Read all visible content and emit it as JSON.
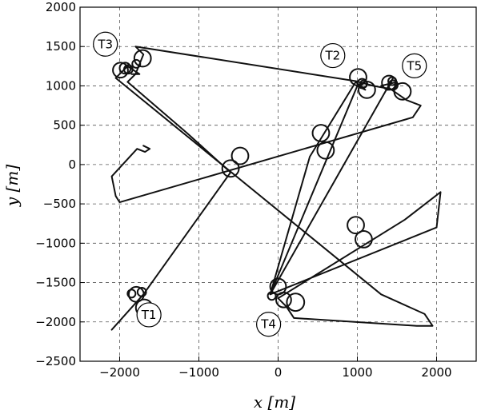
{
  "chart_data": {
    "type": "line",
    "title": "",
    "xlabel": "x [m]",
    "ylabel": "y [m]",
    "xlim": [
      -2500,
      2500
    ],
    "ylim": [
      -2500,
      2000
    ],
    "x_ticks": [
      -2000,
      -1000,
      0,
      1000,
      2000
    ],
    "y_ticks": [
      2000,
      1500,
      1000,
      500,
      0,
      -500,
      -1000,
      -1500,
      -2000,
      -2500
    ],
    "x_tick_labels": [
      "−2000",
      "−1000",
      "0",
      "1000",
      "2000"
    ],
    "y_tick_labels": [
      "2000",
      "1500",
      "1000",
      "500",
      "0",
      "−500",
      "−1000",
      "−1500",
      "−2000",
      "−2500"
    ],
    "grid": true,
    "grid_style": "dashed",
    "line_color": "#111111",
    "targets": [
      {
        "label": "T1",
        "x": -1630,
        "y": -1910
      },
      {
        "label": "T2",
        "x": 690,
        "y": 1385
      },
      {
        "label": "T3",
        "x": -2180,
        "y": 1530
      },
      {
        "label": "T4",
        "x": -120,
        "y": -2030
      },
      {
        "label": "T5",
        "x": 1720,
        "y": 1255
      }
    ],
    "loops": [
      {
        "x": -1710,
        "y": 1350,
        "r": 105
      },
      {
        "x": -1990,
        "y": 1200,
        "r": 95
      },
      {
        "x": -1930,
        "y": 1225,
        "r": 70
      },
      {
        "x": -1890,
        "y": 1210,
        "r": 55
      },
      {
        "x": -1790,
        "y": 1280,
        "r": 50
      },
      {
        "x": 1010,
        "y": 1110,
        "r": 105
      },
      {
        "x": 1120,
        "y": 950,
        "r": 105
      },
      {
        "x": 1060,
        "y": 1030,
        "r": 60
      },
      {
        "x": 1080,
        "y": 1025,
        "r": 45
      },
      {
        "x": 1400,
        "y": 1040,
        "r": 90
      },
      {
        "x": 1450,
        "y": 1010,
        "r": 60
      },
      {
        "x": 1440,
        "y": 1060,
        "r": 50
      },
      {
        "x": 1570,
        "y": 930,
        "r": 105
      },
      {
        "x": -1790,
        "y": -1650,
        "r": 95
      },
      {
        "x": -1690,
        "y": -1820,
        "r": 105
      },
      {
        "x": -1720,
        "y": -1620,
        "r": 55
      },
      {
        "x": -1850,
        "y": -1640,
        "r": 50
      },
      {
        "x": 0,
        "y": -1550,
        "r": 100
      },
      {
        "x": 70,
        "y": -1720,
        "r": 95
      },
      {
        "x": -80,
        "y": -1670,
        "r": 50
      },
      {
        "x": 220,
        "y": -1750,
        "r": 110
      },
      {
        "x": -600,
        "y": -50,
        "r": 105
      },
      {
        "x": -480,
        "y": 110,
        "r": 105
      },
      {
        "x": 540,
        "y": 400,
        "r": 105
      },
      {
        "x": 600,
        "y": 180,
        "r": 105
      },
      {
        "x": 980,
        "y": -770,
        "r": 105
      },
      {
        "x": 1080,
        "y": -950,
        "r": 105
      }
    ],
    "series": [
      {
        "points": [
          [
            -1700,
            240
          ],
          [
            -1620,
            200
          ],
          [
            -1680,
            160
          ],
          [
            -1780,
            200
          ],
          [
            -2100,
            -150
          ],
          [
            -2050,
            -400
          ],
          [
            -2000,
            -480
          ],
          [
            1700,
            600
          ],
          [
            1800,
            750
          ],
          [
            1620,
            820
          ],
          [
            1420,
            960
          ],
          [
            1200,
            1000
          ],
          [
            980,
            1060
          ],
          [
            -1800,
            1500
          ],
          [
            -1700,
            1400
          ],
          [
            -1800,
            1150
          ],
          [
            -1900,
            1050
          ],
          [
            -1150,
            400
          ],
          [
            -600,
            -100
          ],
          [
            -1700,
            -1650
          ],
          [
            -2100,
            -2100
          ]
        ]
      },
      {
        "points": [
          [
            -1850,
            1150
          ],
          [
            -1750,
            1150
          ],
          [
            -1900,
            1250
          ],
          [
            -2050,
            1100
          ],
          [
            1300,
            -1650
          ],
          [
            1850,
            -1900
          ],
          [
            1950,
            -2050
          ],
          [
            1750,
            -2050
          ],
          [
            200,
            -1950
          ],
          [
            100,
            -1800
          ],
          [
            0,
            -1700
          ],
          [
            1600,
            -700
          ],
          [
            2050,
            -350
          ],
          [
            2000,
            -800
          ],
          [
            -100,
            -1650
          ],
          [
            400,
            100
          ],
          [
            980,
            1050
          ],
          [
            1100,
            950
          ],
          [
            1000,
            1000
          ],
          [
            -100,
            -1650
          ],
          [
            1450,
            1100
          ],
          [
            1380,
            950
          ],
          [
            1300,
            1000
          ],
          [
            1500,
            1050
          ]
        ]
      }
    ]
  }
}
